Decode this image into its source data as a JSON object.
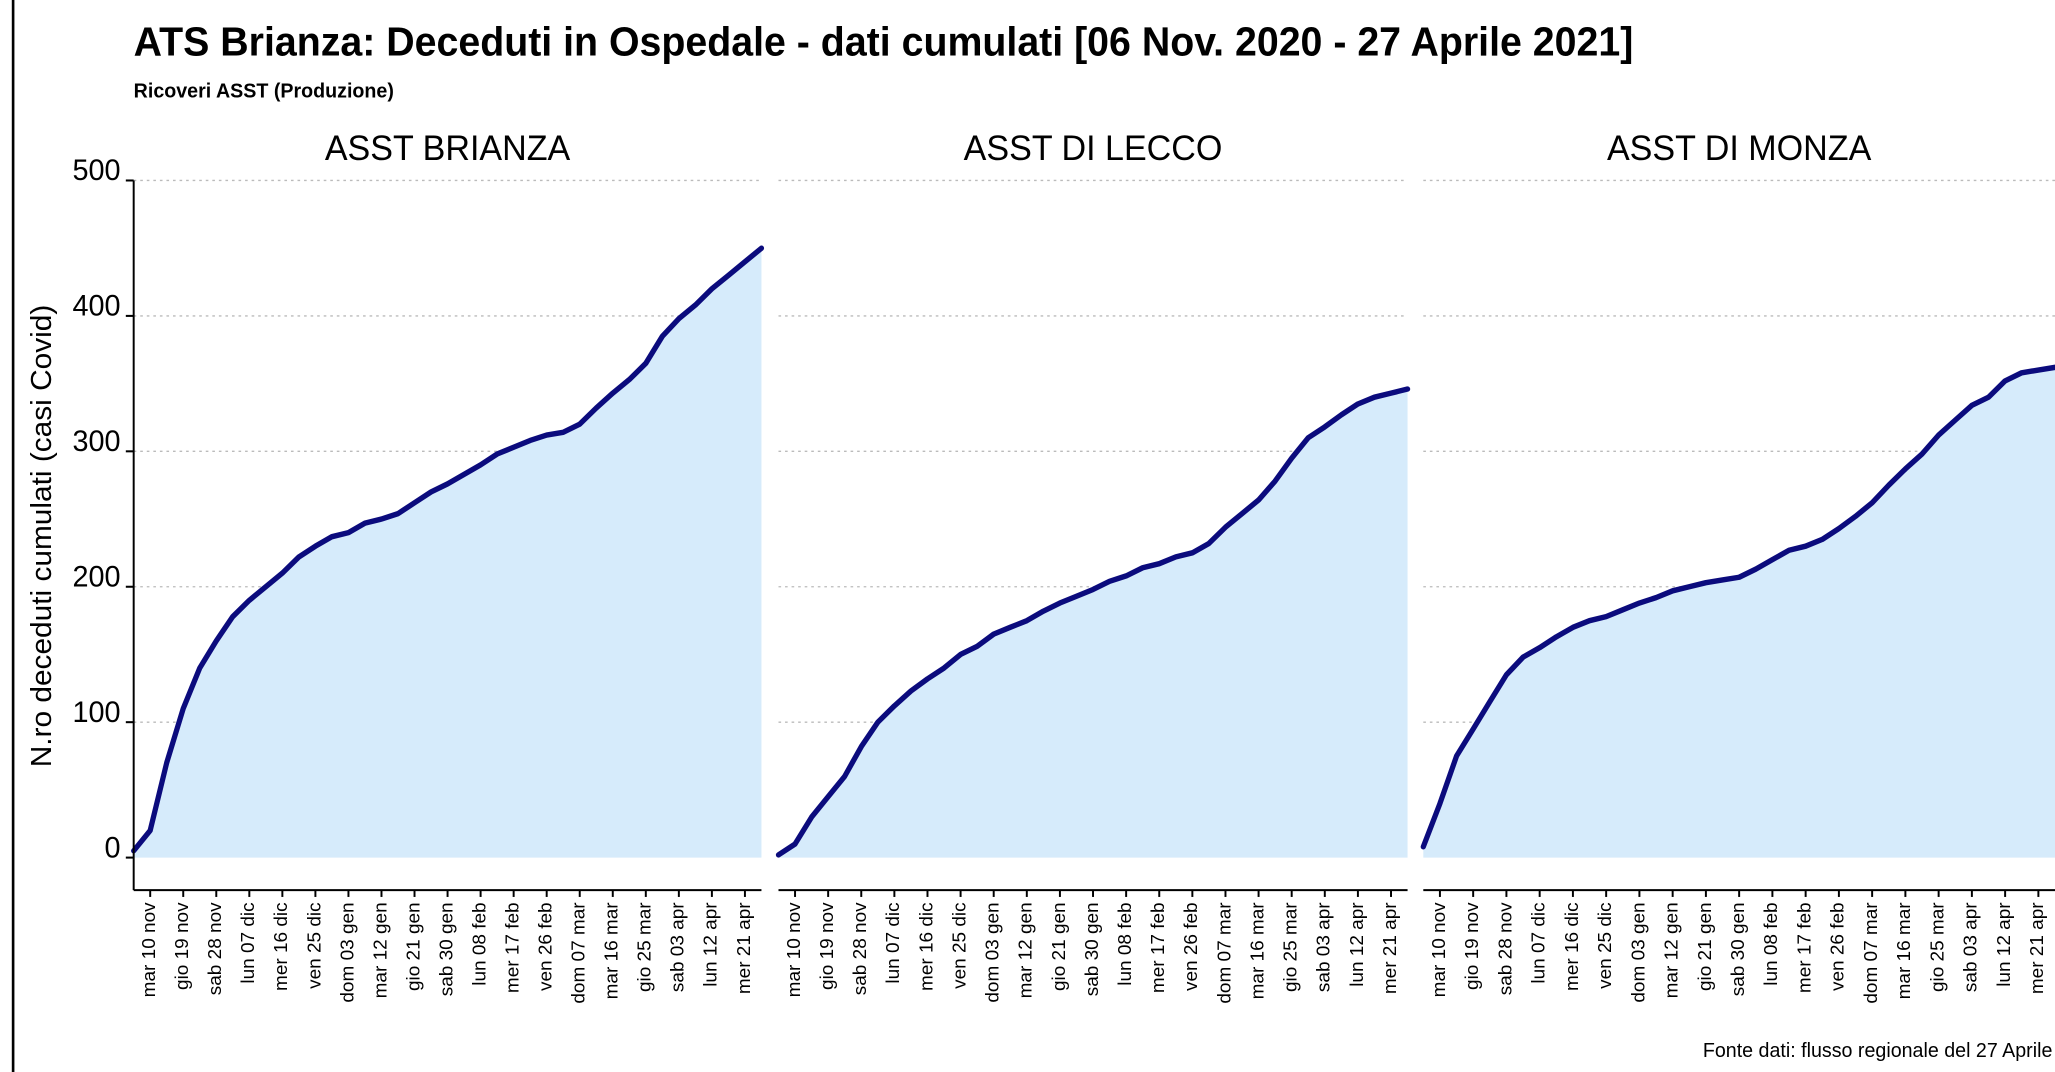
{
  "title": "ATS Brianza: Deceduti in Ospedale - dati cumulati [06 Nov. 2020 - 27 Aprile 2021]",
  "subtitle": "Ricoveri ASST (Produzione)",
  "y_label": "N.ro deceduti cumulati (casi Covid)",
  "source": "Fonte dati: flusso regionale del 27 Aprile",
  "chart_data": [
    {
      "type": "area",
      "title": "ASST BRIANZA",
      "line_color": "#0b0b7d",
      "fill_color": "#d6ebfb",
      "categories": [
        null,
        "mar 10 nov",
        null,
        "gio 19 nov",
        null,
        "sab 28 nov",
        null,
        "lun 07 dic",
        null,
        "mer 16 dic",
        null,
        "ven 25 dic",
        null,
        "dom 03 gen",
        null,
        "mar 12 gen",
        null,
        "gio 21 gen",
        null,
        "sab 30 gen",
        null,
        "lun 08 feb",
        null,
        "mer 17 feb",
        null,
        "ven 26 feb",
        null,
        "dom 07 mar",
        null,
        "mar 16 mar",
        null,
        "gio 25 mar",
        null,
        "sab 03 apr",
        null,
        "lun 12 apr",
        null,
        "mer 21 apr",
        null
      ],
      "values": [
        5,
        20,
        70,
        110,
        140,
        160,
        178,
        190,
        200,
        210,
        222,
        230,
        237,
        240,
        247,
        250,
        254,
        262,
        270,
        276,
        283,
        290,
        298,
        303,
        308,
        312,
        314,
        320,
        332,
        343,
        353,
        365,
        385,
        398,
        408,
        420,
        430,
        440,
        450
      ],
      "ylim": [
        0,
        500
      ],
      "yticks": [
        0,
        100,
        200,
        300,
        400,
        500
      ],
      "grid": true
    },
    {
      "type": "area",
      "title": "ASST DI LECCO",
      "line_color": "#0b0b7d",
      "fill_color": "#d6ebfb",
      "categories": [
        null,
        "mar 10 nov",
        null,
        "gio 19 nov",
        null,
        "sab 28 nov",
        null,
        "lun 07 dic",
        null,
        "mer 16 dic",
        null,
        "ven 25 dic",
        null,
        "dom 03 gen",
        null,
        "mar 12 gen",
        null,
        "gio 21 gen",
        null,
        "sab 30 gen",
        null,
        "lun 08 feb",
        null,
        "mer 17 feb",
        null,
        "ven 26 feb",
        null,
        "dom 07 mar",
        null,
        "mar 16 mar",
        null,
        "gio 25 mar",
        null,
        "sab 03 apr",
        null,
        "lun 12 apr",
        null,
        "mer 21 apr",
        null
      ],
      "values": [
        2,
        10,
        30,
        45,
        60,
        82,
        100,
        112,
        123,
        132,
        140,
        150,
        156,
        165,
        170,
        175,
        182,
        188,
        193,
        198,
        204,
        208,
        214,
        217,
        222,
        225,
        232,
        244,
        254,
        264,
        278,
        295,
        310,
        318,
        327,
        335,
        340,
        343,
        346
      ],
      "ylim": [
        0,
        500
      ],
      "yticks": [
        0,
        100,
        200,
        300,
        400,
        500
      ],
      "grid": true
    },
    {
      "type": "area",
      "title": "ASST DI MONZA",
      "line_color": "#0b0b7d",
      "fill_color": "#d6ebfb",
      "categories": [
        null,
        "mar 10 nov",
        null,
        "gio 19 nov",
        null,
        "sab 28 nov",
        null,
        "lun 07 dic",
        null,
        "mer 16 dic",
        null,
        "ven 25 dic",
        null,
        "dom 03 gen",
        null,
        "mar 12 gen",
        null,
        "gio 21 gen",
        null,
        "sab 30 gen",
        null,
        "lun 08 feb",
        null,
        "mer 17 feb",
        null,
        "ven 26 feb",
        null,
        "dom 07 mar",
        null,
        "mar 16 mar",
        null,
        "gio 25 mar",
        null,
        "sab 03 apr",
        null,
        "lun 12 apr",
        null,
        "mer 21 apr",
        null
      ],
      "values": [
        8,
        40,
        75,
        95,
        115,
        135,
        148,
        155,
        163,
        170,
        175,
        178,
        183,
        188,
        192,
        197,
        200,
        203,
        205,
        207,
        213,
        220,
        227,
        230,
        235,
        243,
        252,
        262,
        275,
        287,
        298,
        312,
        323,
        334,
        340,
        352,
        358,
        360,
        362
      ],
      "ylim": [
        0,
        500
      ],
      "yticks": [
        0,
        100,
        200,
        300,
        400,
        500
      ],
      "grid": true
    }
  ]
}
